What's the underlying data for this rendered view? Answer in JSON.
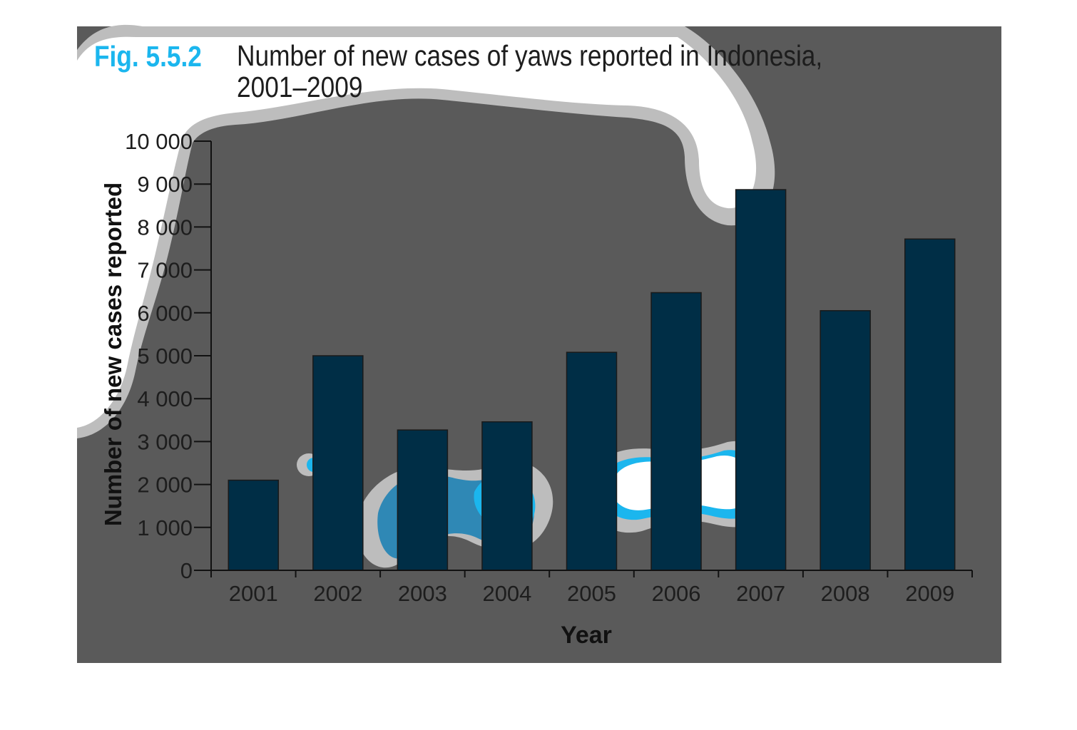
{
  "figure": {
    "number": "Fig. 5.5.2",
    "title": "Number of new cases of yaws reported in Indonesia,\n2001–2009"
  },
  "colors": {
    "panel": "#5a5a5a",
    "bar": "#002e46",
    "accent": "#1bb6ee",
    "text": "#1d1d1d"
  },
  "chart_data": {
    "type": "bar",
    "categories": [
      "2001",
      "2002",
      "2003",
      "2004",
      "2005",
      "2006",
      "2007",
      "2008",
      "2009"
    ],
    "values": [
      2100,
      5000,
      3270,
      3460,
      5080,
      6470,
      8870,
      6050,
      7720
    ],
    "xlabel": "Year",
    "ylabel": "Number of new cases reported",
    "ylim": [
      0,
      10000
    ],
    "yticks": [
      0,
      1000,
      2000,
      3000,
      4000,
      5000,
      6000,
      7000,
      8000,
      9000,
      10000
    ],
    "ytick_labels": [
      "0",
      "1 000",
      "2 000",
      "3 000",
      "4 000",
      "5 000",
      "6 000",
      "7 000",
      "8 000",
      "9 000",
      "10 000"
    ],
    "grid": false,
    "legend": "none"
  }
}
